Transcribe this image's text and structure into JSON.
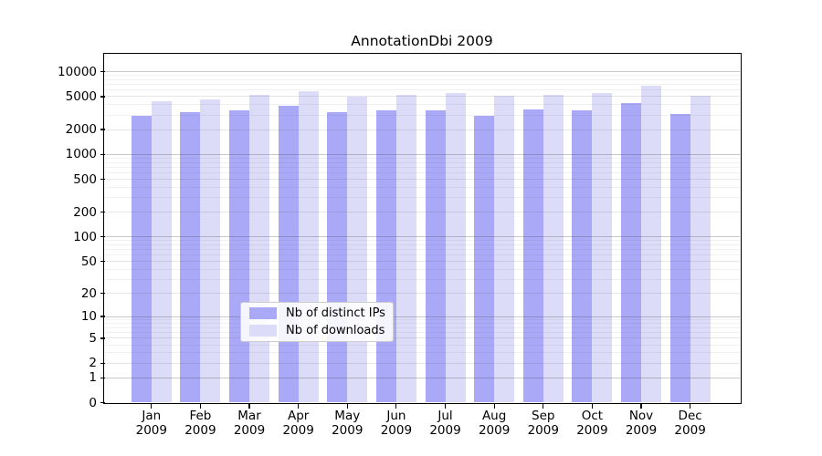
{
  "figure": {
    "title": "AnnotationDbi 2009"
  },
  "colors": {
    "distinct_ips": "#a9a9f7",
    "downloads": "#dcdcf9",
    "grid_decade": "rgba(60,60,60,0.28)",
    "grid_labeled": "rgba(60,60,60,0.13)",
    "grid_minor": "rgba(60,60,60,0.07)",
    "axis": "#000000",
    "legend_border": "#cccccc"
  },
  "legend": {
    "entries": [
      {
        "label": "Nb of distinct IPs",
        "color_key": "distinct_ips"
      },
      {
        "label": "Nb of downloads",
        "color_key": "downloads"
      }
    ]
  },
  "chart_data": {
    "type": "bar",
    "title": "AnnotationDbi 2009",
    "categories": [
      "Jan 2009",
      "Feb 2009",
      "Mar 2009",
      "Apr 2009",
      "May 2009",
      "Jun 2009",
      "Jul 2009",
      "Aug 2009",
      "Sep 2009",
      "Oct 2009",
      "Nov 2009",
      "Dec 2009"
    ],
    "x_tick_line1": [
      "Jan",
      "Feb",
      "Mar",
      "Apr",
      "May",
      "Jun",
      "Jul",
      "Aug",
      "Sep",
      "Oct",
      "Nov",
      "Dec"
    ],
    "x_tick_line2": "2009",
    "series": [
      {
        "name": "Nb of distinct IPs",
        "color_key": "distinct_ips",
        "values": [
          2900,
          3210,
          3440,
          3830,
          3270,
          3440,
          3400,
          2970,
          3490,
          3400,
          4210,
          3050
        ]
      },
      {
        "name": "Nb of downloads",
        "color_key": "downloads",
        "values": [
          4360,
          4610,
          5200,
          5750,
          4980,
          5240,
          5510,
          5070,
          5240,
          5510,
          6700,
          5150
        ]
      }
    ],
    "yaxis": {
      "scale": "log1p",
      "ticks": [
        0,
        1,
        2,
        5,
        10,
        20,
        50,
        100,
        200,
        500,
        1000,
        2000,
        5000,
        10000
      ],
      "minor_ticks": [
        3,
        4,
        6,
        7,
        8,
        9,
        30,
        40,
        60,
        70,
        80,
        90,
        300,
        400,
        600,
        700,
        800,
        900,
        3000,
        4000,
        6000,
        7000,
        8000,
        9000
      ],
      "ylim": [
        0,
        16000
      ]
    },
    "xlabel": "",
    "ylabel": "",
    "grid": true,
    "legend_position": "lower center"
  }
}
